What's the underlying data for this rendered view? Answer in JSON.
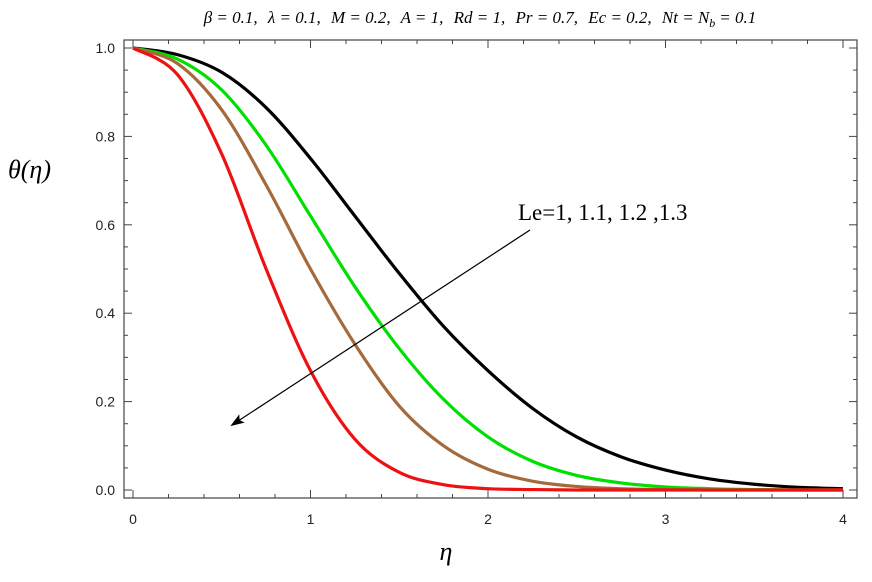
{
  "chart_data": {
    "type": "line",
    "title": "β = 0.1, λ = 0.1, M = 0.2, A = 1, Rd = 1, Pr = 0.7, Ec = 0.2, Nt = N_b = 0.1",
    "title_parts": {
      "beta": "β = 0.1,",
      "lambda": "λ = 0.1,",
      "M": "M = 0.2,",
      "A": "A = 1,",
      "Rd": "Rd = 1,",
      "Pr": "Pr = 0.7,",
      "Ec": "Ec = 0.2,",
      "Nt_pre": "Nt = N",
      "Nt_sub": "b",
      "Nt_post": "= 0.1"
    },
    "xlabel": "η",
    "ylabel": "θ(η)",
    "xlim": [
      0,
      4
    ],
    "ylim": [
      0,
      1
    ],
    "x_ticks": [
      "0",
      "1",
      "2",
      "3",
      "4"
    ],
    "y_ticks": [
      "0.0",
      "0.2",
      "0.4",
      "0.6",
      "0.8",
      "1.0"
    ],
    "annotation": "Le=1, 1.1, 1.2 ,1.3",
    "series": [
      {
        "color": "#000000",
        "x": [
          0,
          0.25,
          0.5,
          0.75,
          1.0,
          1.25,
          1.5,
          1.75,
          2.0,
          2.25,
          2.5,
          2.75,
          3.0,
          3.25,
          3.5,
          3.75,
          4.0
        ],
        "values": [
          1.0,
          0.985,
          0.945,
          0.865,
          0.75,
          0.62,
          0.49,
          0.37,
          0.27,
          0.185,
          0.12,
          0.075,
          0.045,
          0.025,
          0.013,
          0.006,
          0.003
        ]
      },
      {
        "color": "#00e000",
        "x": [
          0,
          0.25,
          0.5,
          0.75,
          1.0,
          1.25,
          1.5,
          1.75,
          2.0,
          2.25,
          2.5,
          2.75,
          3.0,
          3.25,
          3.5,
          3.75,
          4.0
        ],
        "values": [
          1.0,
          0.975,
          0.905,
          0.78,
          0.62,
          0.46,
          0.32,
          0.205,
          0.12,
          0.065,
          0.033,
          0.016,
          0.007,
          0.003,
          0.001,
          0.0,
          0.0
        ]
      },
      {
        "color": "#a56a3c",
        "x": [
          0,
          0.25,
          0.5,
          0.75,
          1.0,
          1.25,
          1.5,
          1.75,
          2.0,
          2.25,
          2.5,
          2.75,
          3.0,
          3.25,
          3.5,
          3.75,
          4.0
        ],
        "values": [
          1.0,
          0.965,
          0.86,
          0.69,
          0.5,
          0.33,
          0.19,
          0.1,
          0.047,
          0.02,
          0.008,
          0.003,
          0.001,
          0.0,
          0.0,
          0.0,
          0.0
        ]
      },
      {
        "color": "#ee1111",
        "x": [
          0,
          0.25,
          0.5,
          0.75,
          1.0,
          1.25,
          1.5,
          1.75,
          2.0,
          2.25,
          2.5,
          2.75,
          3.0,
          3.25,
          3.5,
          3.75,
          4.0
        ],
        "values": [
          1.0,
          0.94,
          0.76,
          0.5,
          0.27,
          0.115,
          0.04,
          0.012,
          0.003,
          0.001,
          0.0,
          0.0,
          0.0,
          0.0,
          0.0,
          0.0,
          0.0
        ]
      }
    ],
    "grid": false
  }
}
